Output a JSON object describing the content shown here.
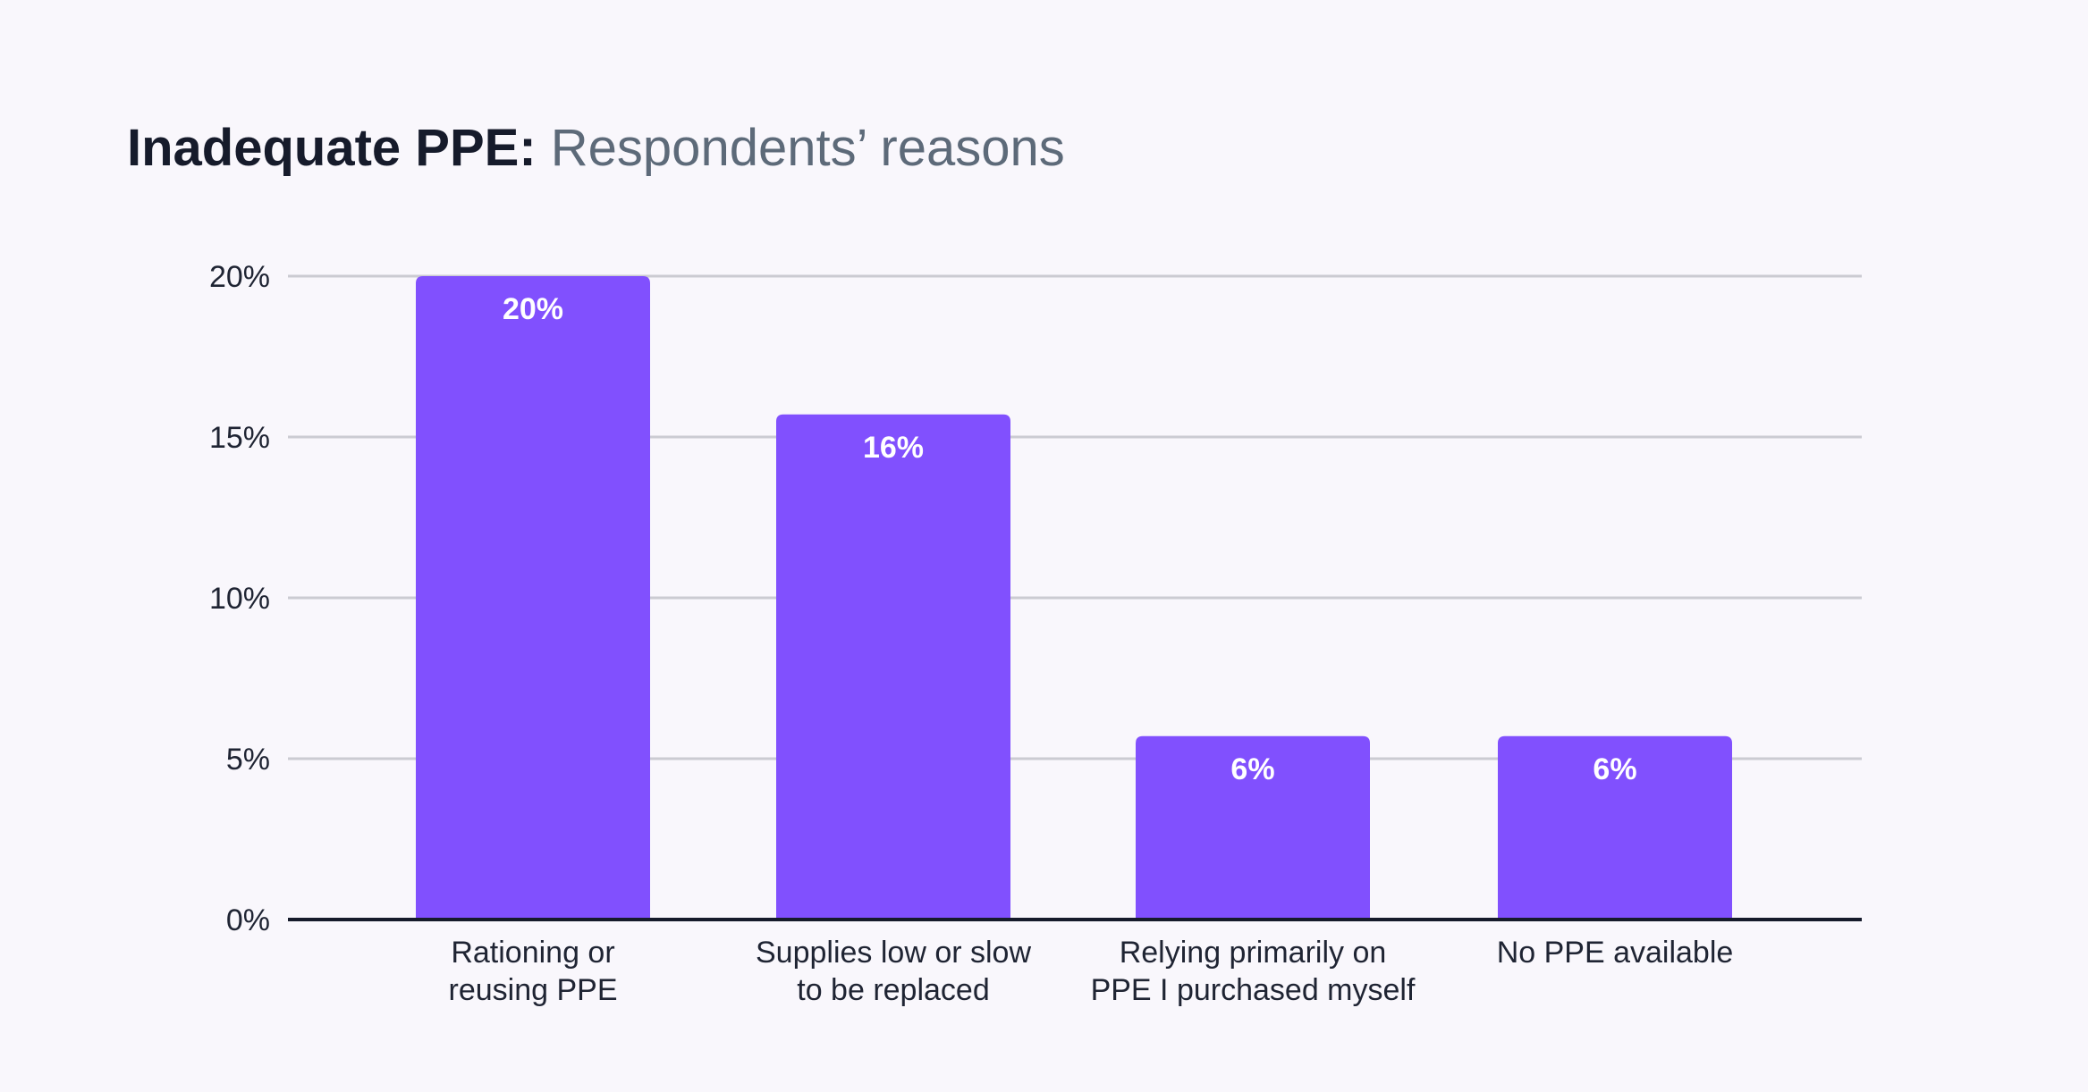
{
  "title": {
    "bold": "Inadequate PPE:",
    "rest": "Respondents’ reasons"
  },
  "chart_data": {
    "type": "bar",
    "categories": [
      [
        "Rationing or",
        "reusing PPE"
      ],
      [
        "Supplies low or slow",
        "to be replaced"
      ],
      [
        "Relying primarily on",
        "PPE I purchased myself"
      ],
      [
        "No PPE available"
      ]
    ],
    "values": [
      20,
      15.7,
      5.7,
      5.7
    ],
    "data_labels": [
      "20%",
      "16%",
      "6%",
      "6%"
    ],
    "yticks": [
      0,
      5,
      10,
      15,
      20
    ],
    "ytick_labels": [
      "0%",
      "5%",
      "10%",
      "15%",
      "20%"
    ],
    "ylim": [
      0,
      20
    ],
    "grid": true,
    "bar_color": "#8150fe",
    "grid_color": "#cbcbd2",
    "axis_color": "#161b2b"
  }
}
